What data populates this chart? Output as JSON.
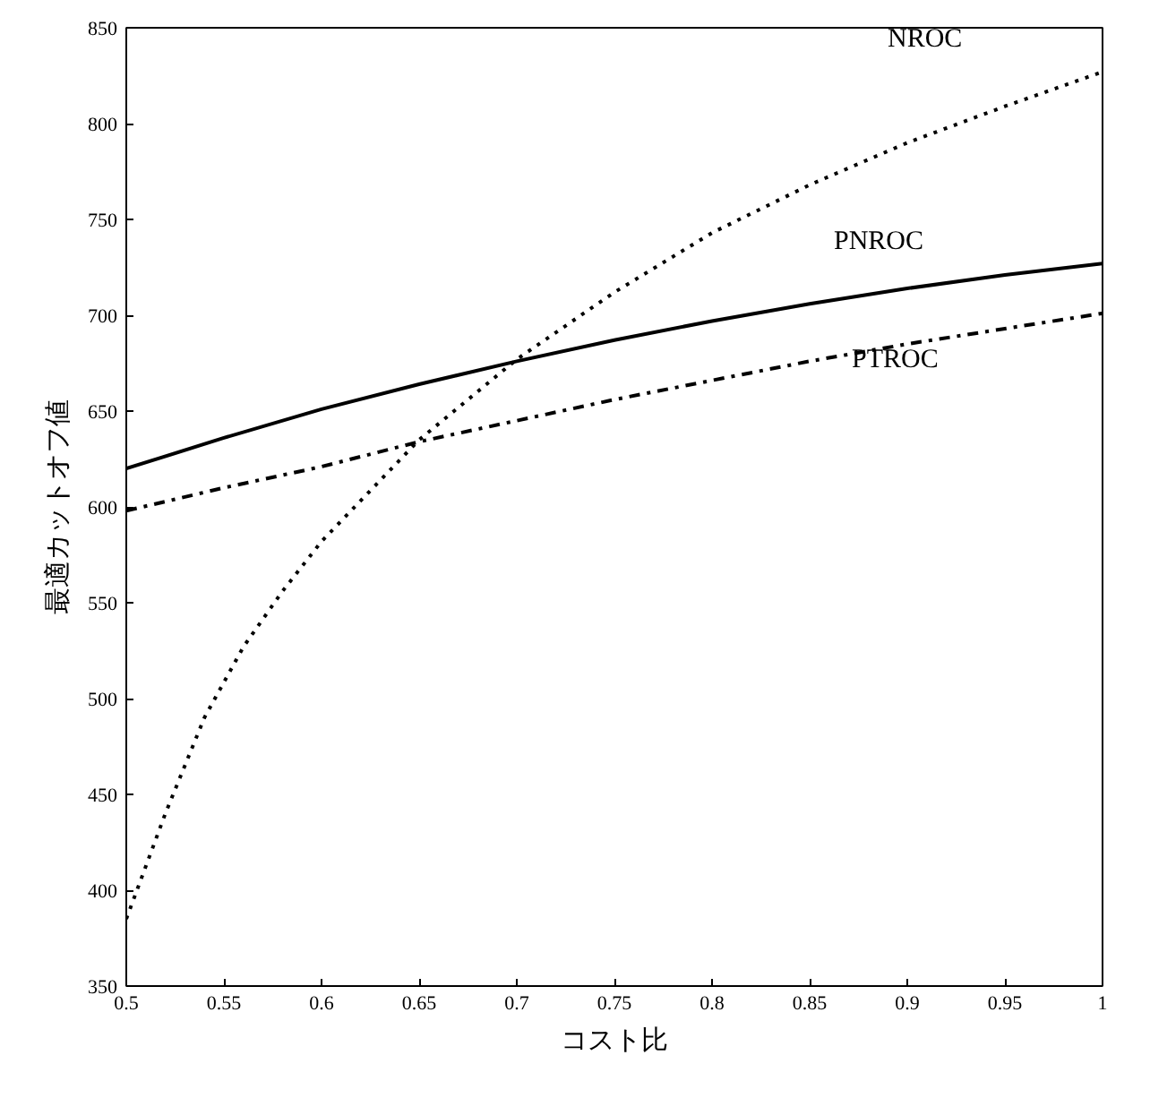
{
  "chart_data": {
    "type": "line",
    "xlabel": "コスト比",
    "ylabel": "最適カットオフ値",
    "xlim": [
      0.5,
      1
    ],
    "ylim": [
      350,
      850
    ],
    "xticks": [
      {
        "value": 0.5,
        "label": "0.5"
      },
      {
        "value": 0.55,
        "label": "0.55"
      },
      {
        "value": 0.6,
        "label": "0.6"
      },
      {
        "value": 0.65,
        "label": "0.65"
      },
      {
        "value": 0.7,
        "label": "0.7"
      },
      {
        "value": 0.75,
        "label": "0.75"
      },
      {
        "value": 0.8,
        "label": "0.8"
      },
      {
        "value": 0.85,
        "label": "0.85"
      },
      {
        "value": 0.9,
        "label": "0.9"
      },
      {
        "value": 0.95,
        "label": "0.95"
      },
      {
        "value": 1,
        "label": "1"
      }
    ],
    "yticks": [
      350,
      400,
      450,
      500,
      550,
      600,
      650,
      700,
      750,
      800,
      850
    ],
    "grid": false,
    "series": [
      {
        "name": "NROC",
        "color": "#000000",
        "line_style": "dotted",
        "x": [
          0.5,
          0.52,
          0.54,
          0.56,
          0.58,
          0.6,
          0.65,
          0.7,
          0.75,
          0.8,
          0.85,
          0.9,
          0.95,
          1
        ],
        "values": [
          385,
          440,
          490,
          527,
          556,
          582,
          635,
          677,
          712,
          743,
          768,
          790,
          809,
          827
        ]
      },
      {
        "name": "PNROC",
        "color": "#000000",
        "line_style": "solid",
        "x": [
          0.5,
          0.55,
          0.6,
          0.65,
          0.7,
          0.75,
          0.8,
          0.85,
          0.9,
          0.95,
          1
        ],
        "values": [
          620,
          636,
          651,
          664,
          676,
          687,
          697,
          706,
          714,
          721,
          727
        ]
      },
      {
        "name": "PTROC",
        "color": "#000000",
        "line_style": "dashdot",
        "x": [
          0.5,
          0.55,
          0.6,
          0.65,
          0.7,
          0.75,
          0.8,
          0.85,
          0.9,
          0.95,
          1
        ],
        "values": [
          598,
          610,
          621,
          634,
          645,
          656,
          666,
          676,
          685,
          693,
          701
        ]
      }
    ]
  }
}
